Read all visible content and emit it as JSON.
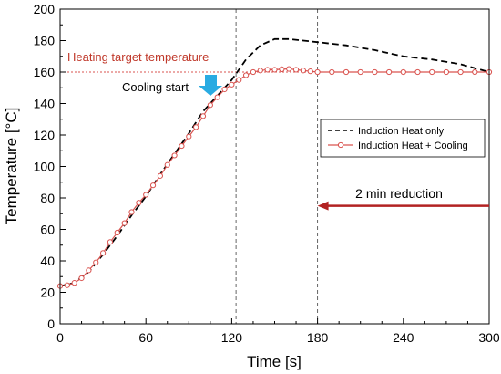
{
  "chart_data": {
    "type": "line",
    "xlabel": "Time [s]",
    "ylabel": "Temperature [°C]",
    "xlim": [
      0,
      300
    ],
    "ylim": [
      0,
      200
    ],
    "xticks": [
      0,
      60,
      120,
      180,
      240,
      300
    ],
    "yticks": [
      0,
      20,
      40,
      60,
      80,
      100,
      120,
      140,
      160,
      180,
      200
    ],
    "grid": false,
    "legend_position": "right",
    "series": [
      {
        "name": "Induction Heat only",
        "color": "#000000",
        "style": "dashed",
        "x": [
          0,
          10,
          20,
          30,
          40,
          50,
          60,
          70,
          80,
          90,
          100,
          105,
          110,
          120,
          130,
          140,
          150,
          160,
          170,
          180,
          200,
          220,
          240,
          260,
          280,
          300
        ],
        "y": [
          24,
          26,
          33,
          44,
          56,
          69,
          81,
          95,
          108,
          121,
          135,
          140,
          145,
          155,
          168,
          177,
          181,
          181,
          180,
          179,
          177,
          174,
          170,
          168,
          165,
          160
        ]
      },
      {
        "name": "Induction Heat + Cooling",
        "color": "#d9534f",
        "style": "solid-markers",
        "x": [
          0,
          5,
          10,
          15,
          20,
          25,
          30,
          35,
          40,
          45,
          50,
          55,
          60,
          65,
          70,
          75,
          80,
          85,
          90,
          95,
          100,
          105,
          110,
          115,
          120,
          125,
          130,
          135,
          140,
          145,
          150,
          155,
          160,
          165,
          170,
          175,
          180,
          190,
          200,
          210,
          220,
          230,
          240,
          250,
          260,
          270,
          280,
          290,
          300
        ],
        "y": [
          24,
          24.5,
          26,
          29,
          34,
          39,
          45,
          52,
          58,
          64,
          71,
          77,
          82,
          88,
          94,
          101,
          107,
          113,
          119,
          125,
          132,
          139,
          144,
          149,
          152,
          155,
          158,
          160,
          161,
          161.5,
          161.5,
          161.8,
          162,
          161.5,
          161,
          160.5,
          160,
          160,
          160,
          160,
          160,
          160,
          160,
          160,
          160,
          160,
          160,
          160,
          160
        ]
      }
    ],
    "reference_lines": [
      {
        "orientation": "horizontal",
        "value": 160,
        "color": "#d9534f",
        "style": "dotted"
      },
      {
        "orientation": "vertical",
        "value": 123,
        "color": "#555555",
        "style": "dashed"
      },
      {
        "orientation": "vertical",
        "value": 180,
        "color": "#555555",
        "style": "dashed"
      }
    ],
    "annotations": [
      {
        "text": "Heating target temperature",
        "color": "#c0392b"
      },
      {
        "text": "Cooling start",
        "color": "#000000",
        "arrow_color": "#29abe2"
      },
      {
        "text": "2 min reduction",
        "color": "#000000",
        "arrow_color": "#b22222",
        "from_x": 300,
        "to_x": 180,
        "y": 75
      }
    ]
  }
}
